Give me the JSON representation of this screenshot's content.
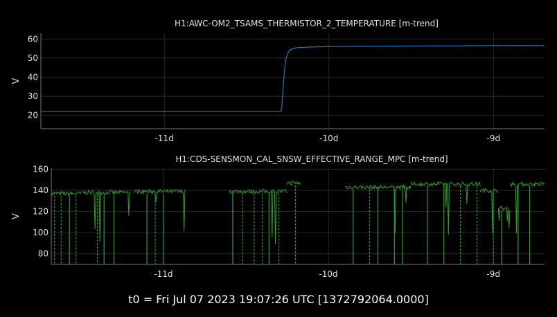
{
  "footer": "t0 = Fri Jul 07 2023 19:07:26 UTC [1372792064.0000]",
  "colors": {
    "background": "#000000",
    "grid": "#2a2a2a",
    "axis": "#777777",
    "text": "#e0e0e0",
    "series1": "#1f77b4",
    "series2": "#2ca02c"
  },
  "chart_data": [
    {
      "type": "line",
      "title": "H1:AWC-OM2_TSAMS_THERMISTOR_2_TEMPERATURE [m-trend]",
      "xlabel": "",
      "ylabel": "V",
      "xlim": [
        -11.75,
        -8.69
      ],
      "ylim": [
        13,
        63
      ],
      "xticks": [
        -11,
        -10,
        -9
      ],
      "xtick_labels": [
        "-11d",
        "-10d",
        "-9d"
      ],
      "yticks": [
        20,
        30,
        40,
        50,
        60
      ],
      "grid": true,
      "color": "#1f77b4",
      "x": [
        -11.75,
        -10.3,
        -10.29,
        -10.285,
        -10.28,
        -10.275,
        -10.27,
        -10.265,
        -10.26,
        -10.25,
        -10.24,
        -10.22,
        -10.19,
        -10.1,
        -10.0,
        -9.5,
        -9.0,
        -8.69
      ],
      "values": [
        22,
        22,
        22,
        26,
        32,
        38,
        43,
        47,
        50,
        52.5,
        54,
        55,
        55.5,
        55.8,
        56,
        56.3,
        56.5,
        56.6
      ]
    },
    {
      "type": "line",
      "title": "H1:CDS-SENSMON_CAL_SNSW_EFFECTIVE_RANGE_MPC [m-trend]",
      "xlabel": "",
      "ylabel": "V",
      "xlim": [
        -11.68,
        -8.69
      ],
      "ylim": [
        70,
        161
      ],
      "xticks": [
        -11,
        -10,
        -9
      ],
      "xtick_labels": [
        "-11d",
        "-10d",
        "-9d"
      ],
      "yticks": [
        80,
        100,
        120,
        140,
        160
      ],
      "grid": true,
      "color": "#2ca02c",
      "segments": [
        {
          "x_start": -11.68,
          "x_end": -11.5,
          "level": 137
        },
        {
          "x_start": -11.49,
          "x_end": -11.2,
          "level": 138
        },
        {
          "x_start": -11.18,
          "x_end": -10.87,
          "level": 139
        },
        {
          "x_start": -10.6,
          "x_end": -10.25,
          "level": 139
        },
        {
          "x_start": -10.25,
          "x_end": -10.17,
          "level": 147
        },
        {
          "x_start": -9.9,
          "x_end": -9.5,
          "level": 143
        },
        {
          "x_start": -9.5,
          "x_end": -9.08,
          "level": 146
        },
        {
          "x_start": -9.08,
          "x_end": -8.97,
          "level": 140
        },
        {
          "x_start": -8.97,
          "x_end": -8.9,
          "level": 123
        },
        {
          "x_start": -8.9,
          "x_end": -8.69,
          "level": 146
        }
      ],
      "dropouts": [
        -11.66,
        -11.62,
        -11.57,
        -11.53,
        -11.4,
        -11.36,
        -11.3,
        -11.1,
        -11.05,
        -11.0,
        -10.58,
        -10.52,
        -10.45,
        -10.4,
        -10.36,
        -10.3,
        -10.2,
        -9.85,
        -9.75,
        -9.7,
        -9.6,
        -9.55,
        -9.4,
        -9.3,
        -9.2,
        -9.1,
        -9.0,
        -8.95,
        -8.85,
        -8.78
      ]
    }
  ]
}
